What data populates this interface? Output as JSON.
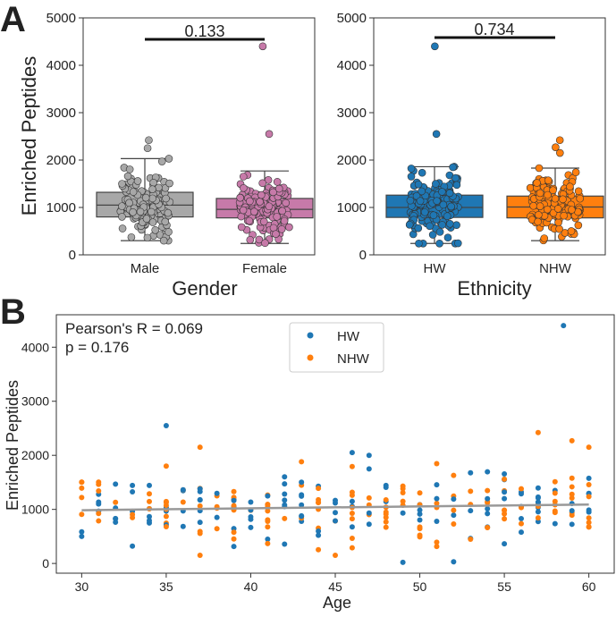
{
  "panels": {
    "a_label": "A",
    "b_label": "B"
  },
  "chart_data": [
    {
      "type": "box",
      "xlabel": "Gender",
      "ylabel": "Enriched Peptides",
      "ylim": [
        0,
        5000
      ],
      "yticks": [
        0,
        1000,
        2000,
        3000,
        4000,
        5000
      ],
      "categories": [
        "Male",
        "Female"
      ],
      "colors": [
        "#a8a8a8",
        "#c77aa9"
      ],
      "boxes": [
        {
          "q1": 800,
          "median": 1050,
          "q3": 1320,
          "whisker_low": 300,
          "whisker_high": 2030
        },
        {
          "q1": 780,
          "median": 960,
          "q3": 1190,
          "whisker_low": 240,
          "whisker_high": 1770
        }
      ],
      "outliers": [
        [
          2250,
          2420
        ],
        [
          2550,
          4400
        ]
      ],
      "pvalue": "0.133"
    },
    {
      "type": "box",
      "xlabel": "Ethnicity",
      "ylabel": "",
      "ylim": [
        0,
        5000
      ],
      "yticks": [
        0,
        1000,
        2000,
        3000,
        4000,
        5000
      ],
      "categories": [
        "HW",
        "NHW"
      ],
      "colors": [
        "#1f77b4",
        "#ff7f0e"
      ],
      "boxes": [
        {
          "q1": 790,
          "median": 1000,
          "q3": 1260,
          "whisker_low": 240,
          "whisker_high": 1860
        },
        {
          "q1": 780,
          "median": 1010,
          "q3": 1240,
          "whisker_low": 300,
          "whisker_high": 1830
        }
      ],
      "outliers": [
        [
          2550,
          4400
        ],
        [
          2150,
          2270,
          2420
        ]
      ],
      "pvalue": "0.734"
    },
    {
      "type": "scatter",
      "xlabel": "Age",
      "ylabel": "Enriched Peptides",
      "xlim": [
        28.5,
        61.5
      ],
      "ylim": [
        -180,
        4600
      ],
      "xticks": [
        30,
        35,
        40,
        45,
        50,
        55,
        60
      ],
      "yticks": [
        0,
        1000,
        2000,
        3000,
        4000
      ],
      "series": [
        {
          "name": "HW",
          "color": "#1f77b4"
        },
        {
          "name": "NHW",
          "color": "#ff7f0e"
        }
      ],
      "regression": {
        "x": [
          30,
          60
        ],
        "y": [
          985,
          1090
        ]
      },
      "annotation_r": "Pearson's R = 0.069",
      "annotation_p": "p = 0.176"
    }
  ]
}
